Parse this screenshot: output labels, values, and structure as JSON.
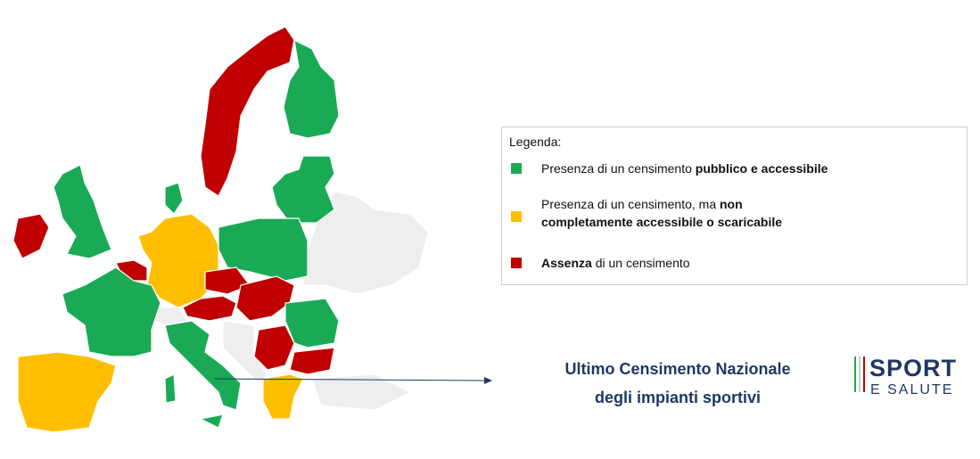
{
  "legend": {
    "title": "Legenda:",
    "items": [
      {
        "color": "#1aaa55",
        "parts": [
          {
            "text": "Presenza di un censimento ",
            "bold": false
          },
          {
            "text": "pubblico e accessibile",
            "bold": true
          }
        ]
      },
      {
        "color": "#ffbf00",
        "parts": [
          {
            "text": "Presenza di un censimento, ma ",
            "bold": false
          },
          {
            "text": "non completamente accessibile o scaricabile",
            "bold": true
          }
        ]
      },
      {
        "color": "#c00000",
        "parts": [
          {
            "text": "Assenza",
            "bold": true
          },
          {
            "text": " di un censimento",
            "bold": false
          }
        ]
      }
    ]
  },
  "annotation": {
    "lines": [
      "Ultimo Censimento Nazionale",
      "degli impianti sportivi"
    ]
  },
  "logo": {
    "title": "SPORT",
    "subtitle": "E SALUTE"
  }
}
